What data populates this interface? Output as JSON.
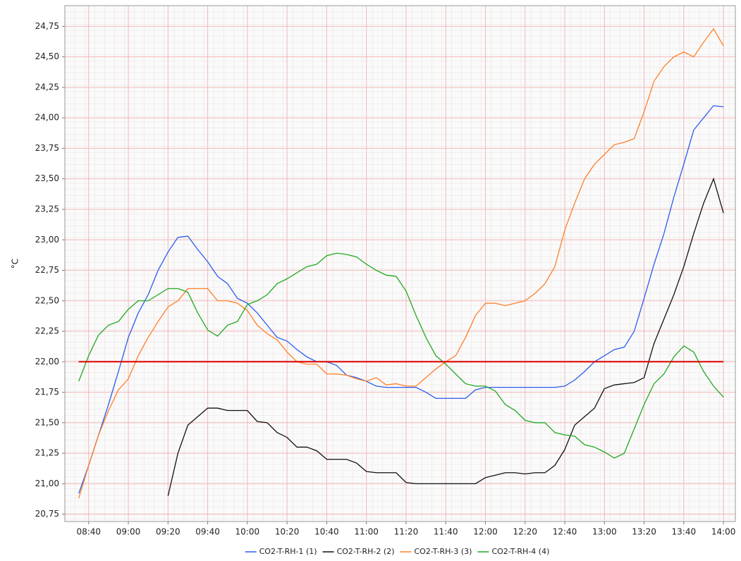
{
  "chart_data": {
    "type": "line",
    "y_label": "°C",
    "x": [
      "08:35",
      "08:40",
      "08:45",
      "08:50",
      "08:55",
      "09:00",
      "09:05",
      "09:10",
      "09:15",
      "09:20",
      "09:25",
      "09:30",
      "09:35",
      "09:40",
      "09:45",
      "09:50",
      "09:55",
      "10:00",
      "10:05",
      "10:10",
      "10:15",
      "10:20",
      "10:25",
      "10:30",
      "10:35",
      "10:40",
      "10:45",
      "10:50",
      "10:55",
      "11:00",
      "11:05",
      "11:10",
      "11:15",
      "11:20",
      "11:25",
      "11:30",
      "11:35",
      "11:40",
      "11:45",
      "11:50",
      "11:55",
      "12:00",
      "12:05",
      "12:10",
      "12:15",
      "12:20",
      "12:25",
      "12:30",
      "12:35",
      "12:40",
      "12:45",
      "12:50",
      "12:55",
      "13:00",
      "13:05",
      "13:10",
      "13:15",
      "13:20",
      "13:25",
      "13:30",
      "13:35",
      "13:40",
      "13:45",
      "13:50",
      "13:55",
      "14:00"
    ],
    "series": [
      {
        "name": "CO2-T-RH-1 (1)",
        "color": "#2a5cf0",
        "values": [
          20.92,
          21.15,
          21.4,
          21.65,
          21.92,
          22.2,
          22.4,
          22.55,
          22.75,
          22.9,
          23.02,
          23.03,
          22.92,
          22.82,
          22.7,
          22.64,
          22.52,
          22.48,
          22.4,
          22.3,
          22.2,
          22.17,
          22.1,
          22.04,
          22.0,
          22.0,
          21.97,
          21.89,
          21.87,
          21.84,
          21.8,
          21.79,
          21.79,
          21.79,
          21.79,
          21.75,
          21.7,
          21.7,
          21.7,
          21.7,
          21.77,
          21.79,
          21.79,
          21.79,
          21.79,
          21.79,
          21.79,
          21.79,
          21.79,
          21.8,
          21.85,
          21.92,
          22.0,
          22.05,
          22.1,
          22.12,
          22.25,
          22.52,
          22.8,
          23.05,
          23.35,
          23.62,
          23.9,
          24.0,
          24.1,
          24.09
        ]
      },
      {
        "name": "CO2-T-RH-2 (2)",
        "color": "#111111",
        "values": [
          null,
          null,
          null,
          null,
          null,
          null,
          null,
          null,
          null,
          20.9,
          21.25,
          21.48,
          21.55,
          21.62,
          21.62,
          21.6,
          21.6,
          21.6,
          21.51,
          21.5,
          21.42,
          21.38,
          21.3,
          21.3,
          21.27,
          21.2,
          21.2,
          21.2,
          21.17,
          21.1,
          21.09,
          21.09,
          21.09,
          21.01,
          21.0,
          21.0,
          21.0,
          21.0,
          21.0,
          21.0,
          21.0,
          21.05,
          21.07,
          21.09,
          21.09,
          21.08,
          21.09,
          21.09,
          21.15,
          21.28,
          21.48,
          21.55,
          21.62,
          21.78,
          21.81,
          21.82,
          21.83,
          21.87,
          22.15,
          22.35,
          22.55,
          22.78,
          23.05,
          23.3,
          23.5,
          23.22
        ]
      },
      {
        "name": "CO2-T-RH-3 (3)",
        "color": "#ff7f27",
        "values": [
          20.88,
          21.15,
          21.4,
          21.6,
          21.77,
          21.86,
          22.05,
          22.2,
          22.33,
          22.45,
          22.5,
          22.6,
          22.6,
          22.6,
          22.5,
          22.5,
          22.48,
          22.42,
          22.3,
          22.23,
          22.18,
          22.08,
          22.0,
          21.98,
          21.98,
          21.9,
          21.9,
          21.89,
          21.86,
          21.84,
          21.87,
          21.81,
          21.82,
          21.8,
          21.8,
          21.87,
          21.94,
          22.0,
          22.05,
          22.2,
          22.38,
          22.48,
          22.48,
          22.46,
          22.48,
          22.5,
          22.56,
          22.64,
          22.78,
          23.08,
          23.3,
          23.5,
          23.62,
          23.7,
          23.78,
          23.8,
          23.83,
          24.05,
          24.3,
          24.42,
          24.5,
          24.54,
          24.5,
          24.62,
          24.73,
          24.59
        ]
      },
      {
        "name": "CO2-T-RH-4 (4)",
        "color": "#1faa1f",
        "values": [
          21.84,
          22.05,
          22.22,
          22.3,
          22.33,
          22.43,
          22.5,
          22.5,
          22.55,
          22.6,
          22.6,
          22.57,
          22.4,
          22.26,
          22.21,
          22.3,
          22.33,
          22.47,
          22.5,
          22.55,
          22.64,
          22.68,
          22.73,
          22.78,
          22.8,
          22.87,
          22.89,
          22.88,
          22.86,
          22.8,
          22.75,
          22.71,
          22.7,
          22.58,
          22.38,
          22.2,
          22.05,
          21.98,
          21.9,
          21.82,
          21.8,
          21.8,
          21.76,
          21.65,
          21.6,
          21.52,
          21.5,
          21.5,
          21.42,
          21.4,
          21.39,
          21.32,
          21.3,
          21.26,
          21.21,
          21.25,
          21.45,
          21.65,
          21.82,
          21.9,
          22.04,
          22.13,
          22.08,
          21.92,
          21.8,
          21.71
        ]
      }
    ],
    "reference_line": {
      "value": 22.0,
      "color": "#e00000"
    },
    "xlim": [
      "08:28",
      "14:06"
    ],
    "xticks": [
      "08:40",
      "09:00",
      "09:20",
      "09:40",
      "10:00",
      "10:20",
      "10:40",
      "11:00",
      "11:20",
      "11:40",
      "12:00",
      "12:20",
      "12:40",
      "13:00",
      "13:20",
      "13:40",
      "14:00"
    ],
    "ylim": [
      20.69,
      24.92
    ],
    "yticks": [
      {
        "value": 20.75,
        "label": "20,75"
      },
      {
        "value": 21.0,
        "label": "21,00"
      },
      {
        "value": 21.25,
        "label": "21,25"
      },
      {
        "value": 21.5,
        "label": "21,50"
      },
      {
        "value": 21.75,
        "label": "21,75"
      },
      {
        "value": 22.0,
        "label": "22,00"
      },
      {
        "value": 22.25,
        "label": "22,25"
      },
      {
        "value": 22.5,
        "label": "22,50"
      },
      {
        "value": 22.75,
        "label": "22,75"
      },
      {
        "value": 23.0,
        "label": "23,00"
      },
      {
        "value": 23.25,
        "label": "23,25"
      },
      {
        "value": 23.5,
        "label": "23,50"
      },
      {
        "value": 23.75,
        "label": "23,75"
      },
      {
        "value": 24.0,
        "label": "24,00"
      },
      {
        "value": 24.25,
        "label": "24,25"
      },
      {
        "value": 24.5,
        "label": "24,50"
      },
      {
        "value": 24.75,
        "label": "24,75"
      }
    ],
    "grid": true,
    "legend": "bottom"
  }
}
